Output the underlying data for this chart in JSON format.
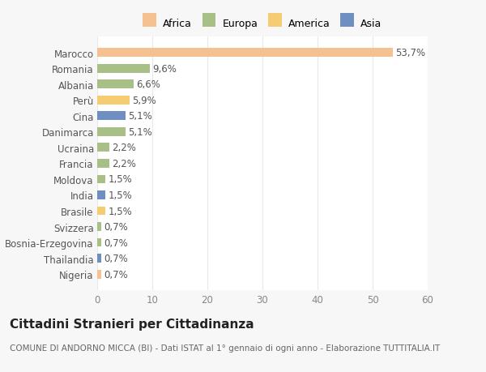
{
  "countries": [
    "Marocco",
    "Romania",
    "Albania",
    "Perù",
    "Cina",
    "Danimarca",
    "Ucraina",
    "Francia",
    "Moldova",
    "India",
    "Brasile",
    "Svizzera",
    "Bosnia-Erzegovina",
    "Thailandia",
    "Nigeria"
  ],
  "values": [
    53.7,
    9.6,
    6.6,
    5.9,
    5.1,
    5.1,
    2.2,
    2.2,
    1.5,
    1.5,
    1.5,
    0.7,
    0.7,
    0.7,
    0.7
  ],
  "labels": [
    "53,7%",
    "9,6%",
    "6,6%",
    "5,9%",
    "5,1%",
    "5,1%",
    "2,2%",
    "2,2%",
    "1,5%",
    "1,5%",
    "1,5%",
    "0,7%",
    "0,7%",
    "0,7%",
    "0,7%"
  ],
  "colors": [
    "#f5c191",
    "#a8bf87",
    "#a8bf87",
    "#f5cc72",
    "#6e8fbf",
    "#a8bf87",
    "#a8bf87",
    "#a8bf87",
    "#a8bf87",
    "#6e8fbf",
    "#f5cc72",
    "#a8bf87",
    "#a8bf87",
    "#6e8fbf",
    "#f5c191"
  ],
  "continent_colors": {
    "Africa": "#f5c191",
    "Europa": "#a8bf87",
    "America": "#f5cc72",
    "Asia": "#6e8fbf"
  },
  "legend_labels": [
    "Africa",
    "Europa",
    "America",
    "Asia"
  ],
  "title": "Cittadini Stranieri per Cittadinanza",
  "subtitle": "COMUNE DI ANDORNO MICCA (BI) - Dati ISTAT al 1° gennaio di ogni anno - Elaborazione TUTTITALIA.IT",
  "xlim": [
    0,
    60
  ],
  "xticks": [
    0,
    10,
    20,
    30,
    40,
    50,
    60
  ],
  "background_color": "#f7f7f7",
  "plot_background": "#ffffff",
  "grid_color": "#e8e8e8",
  "bar_height": 0.55,
  "label_fontsize": 8.5,
  "ytick_fontsize": 8.5,
  "xtick_fontsize": 8.5,
  "title_fontsize": 11,
  "subtitle_fontsize": 7.5
}
